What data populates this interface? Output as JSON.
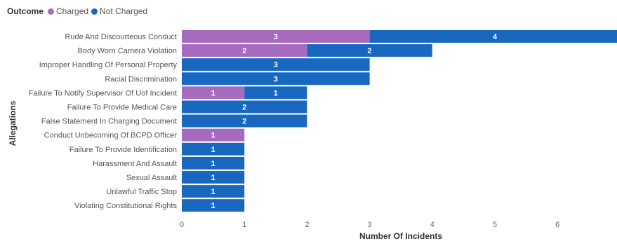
{
  "legend": {
    "title": "Outcome",
    "items": [
      {
        "label": "Charged",
        "color": "#A66BBE"
      },
      {
        "label": "Not Charged",
        "color": "#1868BF"
      }
    ]
  },
  "chart_data": {
    "type": "bar",
    "orientation": "horizontal",
    "stacked": true,
    "categories": [
      "Rude And Discourteous Conduct",
      "Body Worn Camera Violation",
      "Improper Handling Of Personal Property",
      "Racial Discrimination",
      "Failure To Notify Supervisor Of Uof Incident",
      "Failure To Provide Medical Care",
      "False Statement In Charging Document",
      "Conduct Unbecoming Of BCPD Officer",
      "Failure To Provide Identification",
      "Harassment And Assault",
      "Sexual Assault",
      "Unlawful Traffic Stop",
      "Violating Constitutional Rights"
    ],
    "series": [
      {
        "name": "Charged",
        "color": "#A66BBE",
        "values": [
          3,
          2,
          0,
          0,
          1,
          0,
          0,
          1,
          0,
          0,
          0,
          0,
          0
        ]
      },
      {
        "name": "Not Charged",
        "color": "#1868BF",
        "values": [
          4,
          2,
          3,
          3,
          1,
          2,
          2,
          0,
          1,
          1,
          1,
          1,
          1
        ]
      }
    ],
    "xlabel": "Number Of Incidents",
    "ylabel": "Allegations",
    "xticks": [
      0,
      1,
      2,
      3,
      4,
      5,
      6
    ],
    "xlim": [
      0,
      6.8
    ],
    "grid": false,
    "legend_position": "top-left"
  }
}
